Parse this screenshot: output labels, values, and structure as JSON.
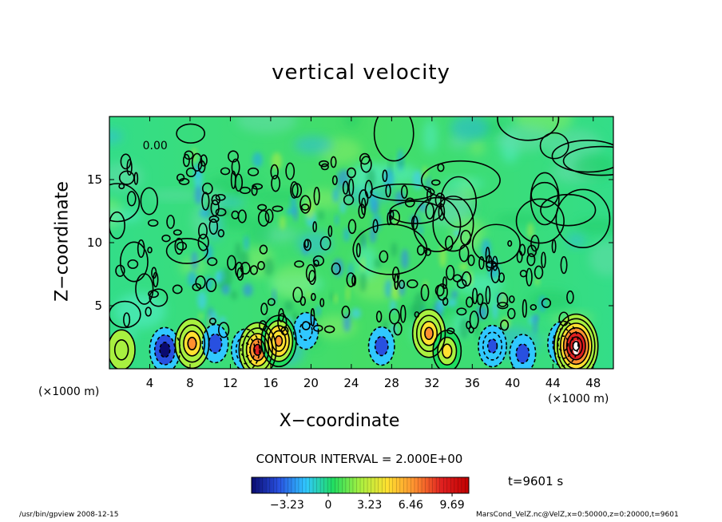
{
  "chart_data": {
    "type": "heatmap",
    "title": "vertical velocity",
    "xlabel": "X−coordinate",
    "ylabel": "Z−coordinate",
    "x_unit_left": "(×1000 m)",
    "x_unit_right": "(×1000 m)",
    "xlim": [
      0,
      50
    ],
    "ylim": [
      0,
      20
    ],
    "x_ticks": [
      4,
      8,
      12,
      16,
      20,
      24,
      28,
      32,
      36,
      40,
      44,
      48
    ],
    "y_ticks": [
      5,
      10,
      15
    ],
    "contour_interval": "CONTOUR INTERVAL = 2.000E+00",
    "time_label": "t=9601 s",
    "colorbar": {
      "ticks": [
        -3.23,
        0,
        3.23,
        6.46,
        9.69
      ],
      "tick_labels": [
        "−3.23",
        "0",
        "3.23",
        "6.46",
        "9.69"
      ],
      "range": [
        -6,
        11
      ],
      "colors": [
        "#0a0a70",
        "#2850e0",
        "#30c8ff",
        "#20dd60",
        "#a8f040",
        "#ffe030",
        "#ff9030",
        "#e02020",
        "#c00000"
      ]
    },
    "features": [
      {
        "kind": "updraft",
        "x": 1.2,
        "z": 1.5,
        "w": 3.5
      },
      {
        "kind": "downdraft",
        "x": 5.5,
        "z": 1.5,
        "w": -5.0
      },
      {
        "kind": "updraft",
        "x": 8.2,
        "z": 2.0,
        "w": 6.5
      },
      {
        "kind": "downdraft",
        "x": 10.5,
        "z": 2.0,
        "w": -3.0
      },
      {
        "kind": "downdraft",
        "x": 13.5,
        "z": 1.5,
        "w": -4.0
      },
      {
        "kind": "updraft",
        "x": 14.7,
        "z": 1.5,
        "w": 8.0
      },
      {
        "kind": "updraft",
        "x": 16.8,
        "z": 2.2,
        "w": 7.0
      },
      {
        "kind": "downdraft",
        "x": 19.5,
        "z": 3.0,
        "w": -2.5
      },
      {
        "kind": "downdraft",
        "x": 27.0,
        "z": 1.8,
        "w": -3.0
      },
      {
        "kind": "updraft",
        "x": 31.7,
        "z": 2.8,
        "w": 6.0
      },
      {
        "kind": "updraft",
        "x": 33.5,
        "z": 1.4,
        "w": 4.0
      },
      {
        "kind": "downdraft",
        "x": 38.0,
        "z": 1.8,
        "w": -4.0
      },
      {
        "kind": "downdraft",
        "x": 41.0,
        "z": 1.2,
        "w": -3.0
      },
      {
        "kind": "downdraft",
        "x": 45.0,
        "z": 2.0,
        "w": -5.0
      },
      {
        "kind": "updraft",
        "x": 46.3,
        "z": 1.8,
        "w": 11.0
      }
    ],
    "grid": false,
    "legend": "bottom"
  },
  "footer": {
    "left": "/usr/bin/gpview   2008-12-15",
    "right": "MarsCond_VelZ.nc@VelZ,x=0:50000,z=0:20000,t=9601"
  }
}
